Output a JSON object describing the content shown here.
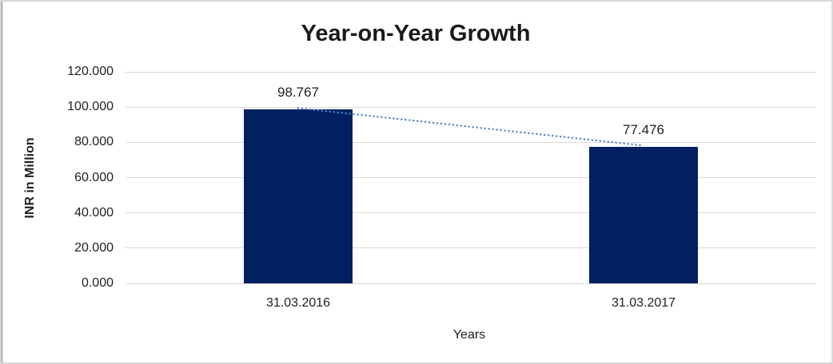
{
  "chart_data": {
    "type": "bar",
    "title": "Year-on-Year Growth",
    "xlabel": "Years",
    "ylabel": "INR in Million",
    "categories": [
      "31.03.2016",
      "31.03.2017"
    ],
    "values": [
      98.767,
      77.476
    ],
    "data_labels": [
      "98.767",
      "77.476"
    ],
    "ylim": [
      0,
      120
    ],
    "y_tick_step": 20,
    "y_tick_labels": [
      "0.000",
      "20.000",
      "40.000",
      "60.000",
      "80.000",
      "100.000",
      "120.000"
    ],
    "grid": true,
    "legend": "none",
    "bar_color": "#002060",
    "trendline": {
      "style": "dotted",
      "color": "#4E86C6",
      "from_value": 98.767,
      "to_value": 77.476
    }
  },
  "colors": {
    "bar": "#002060",
    "trendline": "#4E86C6",
    "gridline": "#D9D9D9",
    "text": "#1F1F1F",
    "outer_border": "#D9D9D9",
    "left_accent_line": "#808080",
    "background": "#FFFFFF"
  }
}
